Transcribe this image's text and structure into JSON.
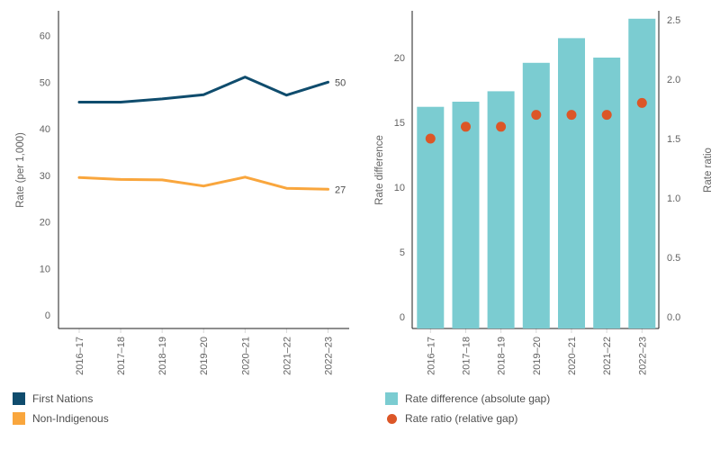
{
  "figure": {
    "background": "#ffffff"
  },
  "chart_data": [
    {
      "type": "line",
      "panel": "left",
      "title": "",
      "ylabel": "Rate (per 1,000)",
      "xlabel": "",
      "ylim": [
        0,
        60
      ],
      "ytick_step": 10,
      "yticks": [
        "0",
        "10",
        "20",
        "30",
        "40",
        "50",
        "60"
      ],
      "categories": [
        "2016–17",
        "2017–18",
        "2018–19",
        "2019–20",
        "2020–21",
        "2021–22",
        "2022–23"
      ],
      "grid": false,
      "legend_position": "bottom-left",
      "series": [
        {
          "name": "First Nations",
          "color": "#0f4c6d",
          "values": [
            45.7,
            45.7,
            46.4,
            47.3,
            51.1,
            47.2,
            50.0
          ],
          "end_label": "50"
        },
        {
          "name": "Non-Indigenous",
          "color": "#f9a63d",
          "values": [
            29.5,
            29.1,
            29.0,
            27.7,
            29.6,
            27.2,
            27.0
          ],
          "end_label": "27"
        }
      ]
    },
    {
      "type": "bar",
      "panel": "right",
      "title": "",
      "ylabel_left": "Rate difference",
      "ylabel_right": "Rate ratio",
      "xlabel": "",
      "ylim_left": [
        0,
        23.5
      ],
      "ytick_step_left": 5,
      "yticks_left": [
        "0",
        "5",
        "10",
        "15",
        "20"
      ],
      "ylim_right": [
        0,
        2.5
      ],
      "ytick_step_right": 0.5,
      "yticks_right": [
        "0.0",
        "0.5",
        "1.0",
        "1.5",
        "2.0",
        "2.5"
      ],
      "categories": [
        "2016–17",
        "2017–18",
        "2018–19",
        "2019–20",
        "2020–21",
        "2021–22",
        "2022–23"
      ],
      "grid": false,
      "legend_position": "bottom-left",
      "series": [
        {
          "name": "Rate difference (absolute gap)",
          "mark": "bar",
          "axis": "left",
          "color": "#7bccd1",
          "values": [
            16.2,
            16.6,
            17.4,
            19.6,
            21.5,
            20.0,
            23.0
          ]
        },
        {
          "name": "Rate ratio (relative gap)",
          "mark": "point",
          "axis": "right",
          "color": "#dc5627",
          "values": [
            1.5,
            1.6,
            1.6,
            1.7,
            1.7,
            1.7,
            1.8
          ]
        }
      ]
    }
  ]
}
